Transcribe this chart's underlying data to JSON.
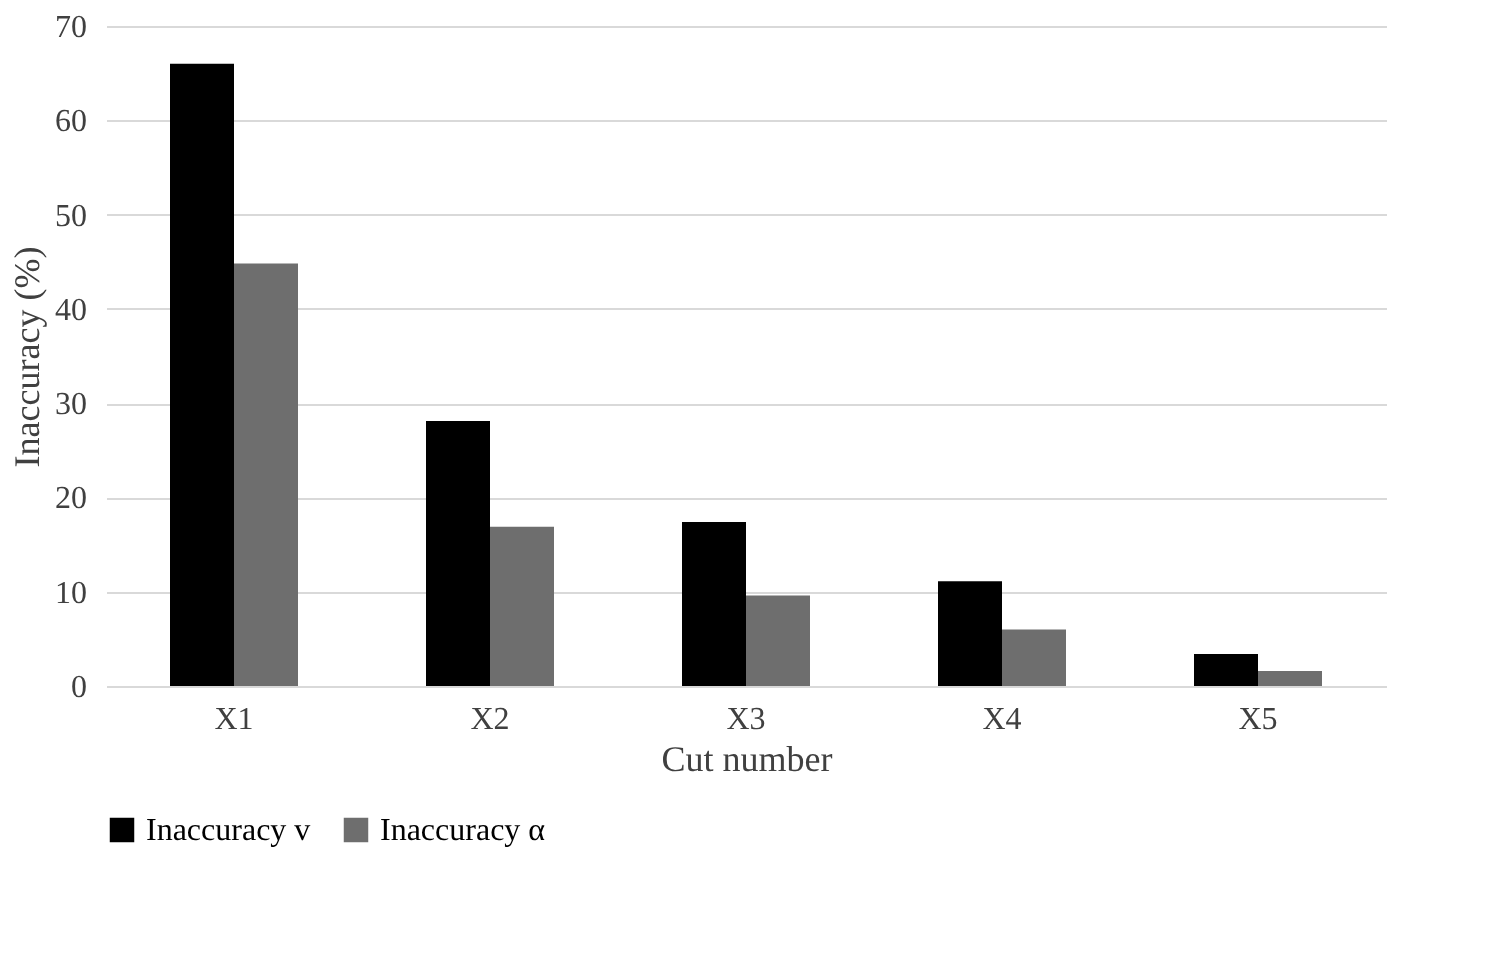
{
  "chart_data": {
    "type": "bar",
    "xlabel": "Cut number",
    "ylabel": "Inaccuracy  (%)",
    "categories": [
      "X1",
      "X2",
      "X3",
      "X4",
      "X5"
    ],
    "series": [
      {
        "name": "Inaccuracy  v",
        "color": "#000000",
        "values": [
          66,
          28.1,
          17.4,
          11.1,
          3.4
        ]
      },
      {
        "name": "Inaccuracy  α",
        "color": "#6e6e6e",
        "values": [
          44.8,
          16.9,
          9.6,
          6.0,
          1.6
        ]
      }
    ],
    "ylim": [
      0,
      70
    ],
    "yticks": [
      0,
      10,
      20,
      30,
      40,
      50,
      60,
      70
    ],
    "grid": "y",
    "legend": "bottom"
  }
}
